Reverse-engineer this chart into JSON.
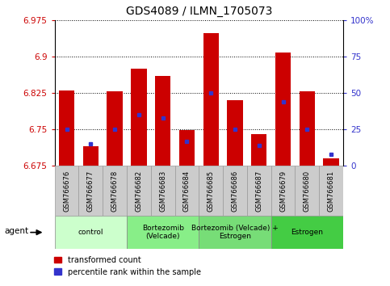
{
  "title": "GDS4089 / ILMN_1705073",
  "samples": [
    "GSM766676",
    "GSM766677",
    "GSM766678",
    "GSM766682",
    "GSM766683",
    "GSM766684",
    "GSM766685",
    "GSM766686",
    "GSM766687",
    "GSM766679",
    "GSM766680",
    "GSM766681"
  ],
  "bar_heights": [
    6.83,
    6.715,
    6.828,
    6.875,
    6.86,
    6.748,
    6.948,
    6.81,
    6.74,
    6.908,
    6.828,
    6.69
  ],
  "bar_base": 6.675,
  "percentile_pct": [
    25,
    15,
    25,
    35,
    33,
    17,
    50,
    25,
    14,
    44,
    25,
    8
  ],
  "ylim_min": 6.675,
  "ylim_max": 6.975,
  "yticks": [
    6.675,
    6.75,
    6.825,
    6.9,
    6.975
  ],
  "ytick_labels": [
    "6.675",
    "6.75",
    "6.825",
    "6.9",
    "6.975"
  ],
  "right_yticks": [
    0,
    25,
    50,
    75,
    100
  ],
  "right_ytick_labels": [
    "0",
    "25",
    "50",
    "75",
    "100%"
  ],
  "bar_color": "#cc0000",
  "blue_color": "#3333cc",
  "groups": [
    {
      "label": "control",
      "start": 0,
      "end": 3,
      "color": "#ccffcc"
    },
    {
      "label": "Bortezomib\n(Velcade)",
      "start": 3,
      "end": 6,
      "color": "#88ee88"
    },
    {
      "label": "Bortezomib (Velcade) +\nEstrogen",
      "start": 6,
      "end": 9,
      "color": "#77dd77"
    },
    {
      "label": "Estrogen",
      "start": 9,
      "end": 12,
      "color": "#44cc44"
    }
  ],
  "agent_label": "agent",
  "legend_red": "transformed count",
  "legend_blue": "percentile rank within the sample",
  "bar_width": 0.65,
  "tick_color": "#cc0000",
  "right_tick_color": "#3333cc",
  "sample_box_color": "#cccccc",
  "sample_box_edge": "#999999"
}
